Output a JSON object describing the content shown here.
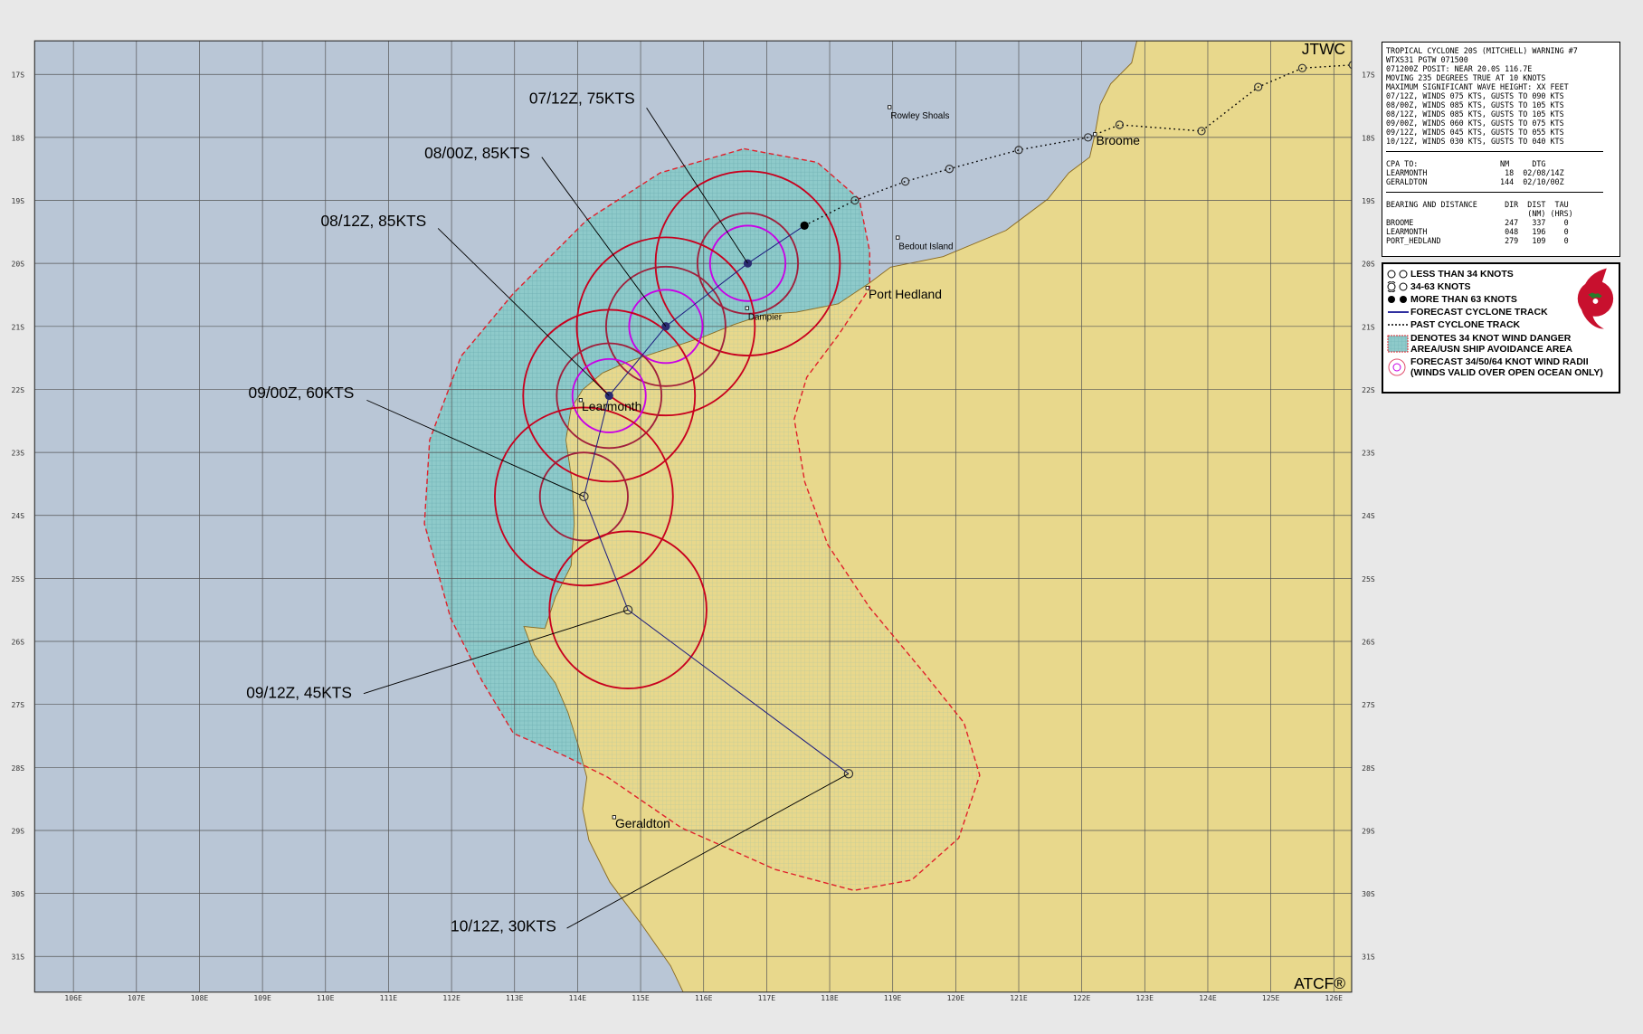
{
  "title": "JTWC",
  "footer": "ATCF®",
  "colors": {
    "background": "#e8e8e8",
    "ocean": "#b9c6d6",
    "land": "#e8d88c",
    "danger": "#8ecaca",
    "radius34": "#c8001e",
    "radius50": "#a0203c",
    "radius64": "#c800e6",
    "track": "#202080"
  },
  "axes": {
    "lon_ticks": [
      "106E",
      "107E",
      "108E",
      "109E",
      "110E",
      "111E",
      "112E",
      "113E",
      "114E",
      "115E",
      "116E",
      "117E",
      "118E",
      "119E",
      "120E",
      "121E",
      "122E",
      "123E",
      "124E",
      "125E",
      "126E"
    ],
    "lat_ticks": [
      "17S",
      "18S",
      "19S",
      "20S",
      "21S",
      "22S",
      "23S",
      "24S",
      "25S",
      "26S",
      "27S",
      "28S",
      "29S",
      "30S",
      "31S"
    ]
  },
  "forecast": [
    {
      "label": "07/12Z, 75KTS",
      "lon": 116.7,
      "lat": 20.0,
      "intensity": "more than 63"
    },
    {
      "label": "08/00Z, 85KTS",
      "lon": 115.4,
      "lat": 21.0,
      "intensity": "more than 63"
    },
    {
      "label": "08/12Z, 85KTS",
      "lon": 114.5,
      "lat": 22.1,
      "intensity": "more than 63"
    },
    {
      "label": "09/00Z, 60KTS",
      "lon": 114.1,
      "lat": 23.7,
      "intensity": "34-63"
    },
    {
      "label": "09/12Z, 45KTS",
      "lon": 114.8,
      "lat": 25.5,
      "intensity": "34-63"
    },
    {
      "label": "10/12Z, 30KTS",
      "lon": 118.3,
      "lat": 28.1,
      "intensity": "less than 34"
    }
  ],
  "past_track": [
    [
      117.6,
      19.4
    ],
    [
      118.4,
      19.0
    ],
    [
      119.2,
      18.7
    ],
    [
      119.9,
      18.5
    ],
    [
      121.0,
      18.2
    ],
    [
      122.1,
      18.0
    ],
    [
      122.6,
      17.8
    ],
    [
      123.9,
      17.9
    ],
    [
      124.8,
      17.2
    ],
    [
      125.5,
      16.9
    ],
    [
      126.3,
      16.85
    ]
  ],
  "places": [
    {
      "name": "Rowley Shoals",
      "lon": 118.95,
      "lat": 17.52,
      "size": "small"
    },
    {
      "name": "Bedout Island",
      "lon": 119.08,
      "lat": 19.59,
      "size": "small"
    },
    {
      "name": "Port Hedland",
      "lon": 118.6,
      "lat": 20.39,
      "size": "large"
    },
    {
      "name": "Dampier",
      "lon": 116.69,
      "lat": 20.71,
      "size": "small"
    },
    {
      "name": "Broome",
      "lon": 122.21,
      "lat": 17.95,
      "size": "large"
    },
    {
      "name": "Learmonth",
      "lon": 114.05,
      "lat": 22.17,
      "size": "large"
    },
    {
      "name": "Geraldton",
      "lon": 114.58,
      "lat": 28.79,
      "size": "large"
    }
  ],
  "info": {
    "header": [
      "TROPICAL CYCLONE 20S (MITCHELL) WARNING #7",
      "WTXS31 PGTW 071500",
      "071200Z POSIT: NEAR 20.0S 116.7E",
      "MOVING 235 DEGREES TRUE AT 10 KNOTS",
      "MAXIMUM SIGNIFICANT WAVE HEIGHT: XX FEET",
      "07/12Z, WINDS 075 KTS, GUSTS TO 090 KTS",
      "08/00Z, WINDS 085 KTS, GUSTS TO 105 KTS",
      "08/12Z, WINDS 085 KTS, GUSTS TO 105 KTS",
      "09/00Z, WINDS 060 KTS, GUSTS TO 075 KTS",
      "09/12Z, WINDS 045 KTS, GUSTS TO 055 KTS",
      "10/12Z, WINDS 030 KTS, GUSTS TO 040 KTS"
    ],
    "cpa": [
      "CPA TO:                  NM     DTG",
      "LEARMONTH                 18  02/08/14Z",
      "GERALDTON                144  02/10/00Z"
    ],
    "bearing": [
      "BEARING AND DISTANCE      DIR  DIST  TAU",
      "                               (NM) (HRS)",
      "BROOME                    247   337    0",
      "LEARMONTH                 048   196    0",
      "PORT_HEDLAND              279   109    0"
    ]
  },
  "legend": {
    "lt34": "LESS THAN 34 KNOTS",
    "k34_63": "34-63 KNOTS",
    "gt63": "MORE THAN 63 KNOTS",
    "forecast_track": "FORECAST CYCLONE TRACK",
    "past_track": "PAST CYCLONE TRACK",
    "danger": "DENOTES 34 KNOT WIND DANGER AREA/USN SHIP AVOIDANCE AREA",
    "radii": "FORECAST 34/50/64 KNOT WIND RADII (WINDS VALID OVER OPEN OCEAN ONLY)",
    "logo_text": "JOINT TYPHOON WARNING CENTER PEARL HARBOR HAWAII"
  }
}
